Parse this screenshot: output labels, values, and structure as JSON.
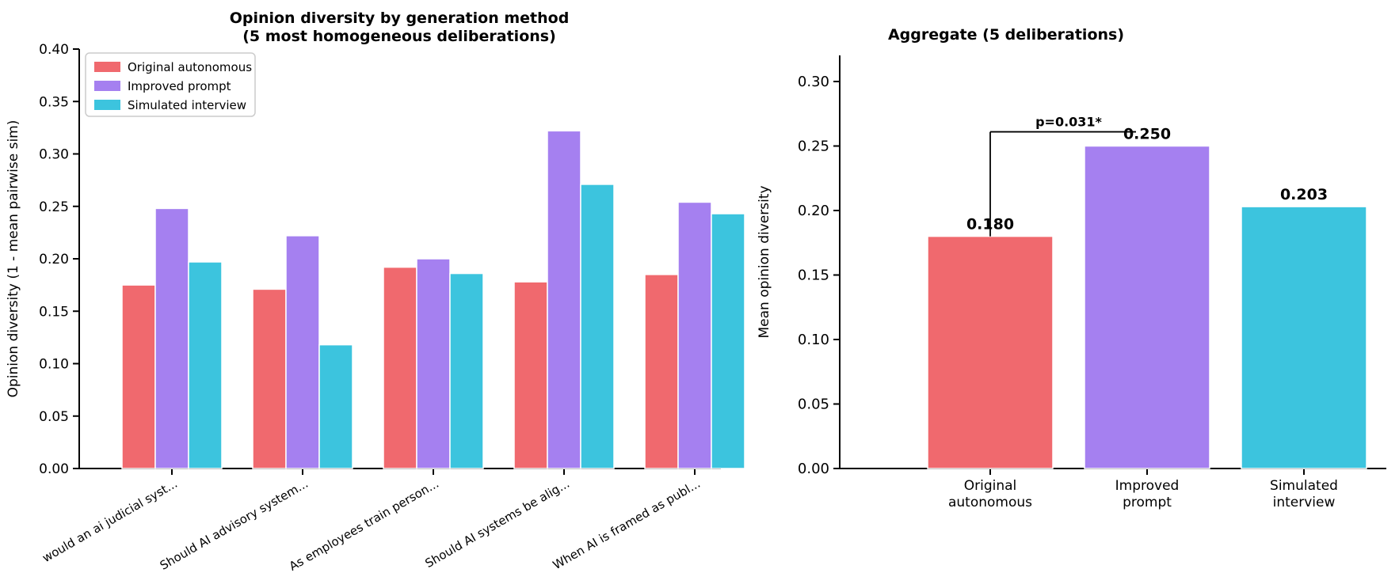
{
  "figure": {
    "background": "#ffffff"
  },
  "chart_data": [
    {
      "type": "bar",
      "title": "Opinion diversity by generation method",
      "subtitle": "(5 most homogeneous deliberations)",
      "ylabel": "Opinion diversity (1 - mean pairwise sim)",
      "ylim": [
        0,
        0.4
      ],
      "yticks": [
        "0.00",
        "0.05",
        "0.10",
        "0.15",
        "0.20",
        "0.25",
        "0.30",
        "0.35",
        "0.40"
      ],
      "grid": false,
      "legend_position": "upper left",
      "categories": [
        "would an ai judicial syst...",
        "Should AI advisory system...",
        "As employees train person...",
        "Should AI systems be alig...",
        "When AI is framed as publ..."
      ],
      "series": [
        {
          "name": "Original autonomous",
          "color": "#f0696e",
          "values": [
            0.175,
            0.171,
            0.192,
            0.178,
            0.185
          ]
        },
        {
          "name": "Improved prompt",
          "color": "#a580f0",
          "values": [
            0.248,
            0.222,
            0.2,
            0.322,
            0.254
          ]
        },
        {
          "name": "Simulated interview",
          "color": "#3cc4de",
          "values": [
            0.197,
            0.118,
            0.186,
            0.271,
            0.243
          ]
        }
      ]
    },
    {
      "type": "bar",
      "title": "Aggregate (5 deliberations)",
      "ylabel": "Mean opinion diversity",
      "ylim": [
        0,
        0.32
      ],
      "yticks": [
        "0.00",
        "0.05",
        "0.10",
        "0.15",
        "0.20",
        "0.25",
        "0.30"
      ],
      "grid": false,
      "categories": [
        [
          "Original",
          "autonomous"
        ],
        [
          "Improved",
          "prompt"
        ],
        [
          "Simulated",
          "interview"
        ]
      ],
      "values": [
        0.18,
        0.25,
        0.203
      ],
      "bar_labels": [
        "0.180",
        "0.250",
        "0.203"
      ],
      "colors": [
        "#f0696e",
        "#a580f0",
        "#3cc4de"
      ],
      "significance": {
        "label": "p=0.031*",
        "from_bar": 0,
        "to_bar": 1,
        "bracket_height": 0.261
      }
    }
  ]
}
